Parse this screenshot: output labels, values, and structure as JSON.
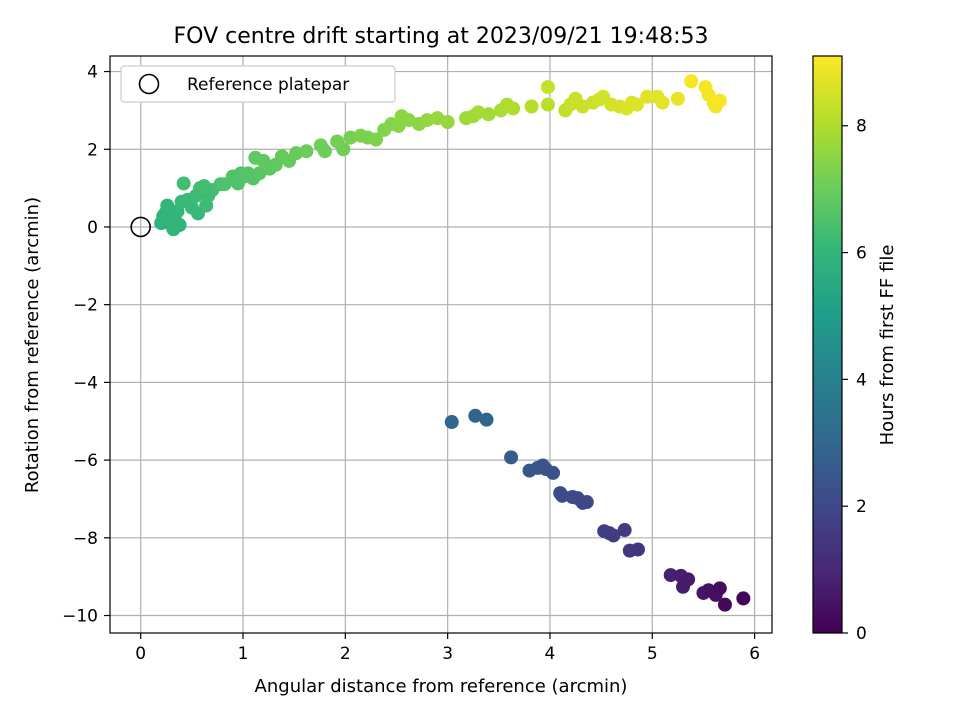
{
  "chart_data": {
    "type": "scatter",
    "title": "FOV centre drift starting at 2023/09/21 19:48:53",
    "xlabel": "Angular distance from reference (arcmin)",
    "ylabel": "Rotation from reference (arcmin)",
    "xlim": [
      -0.3,
      6.17
    ],
    "ylim": [
      -10.45,
      4.4
    ],
    "xticks": [
      0,
      1,
      2,
      3,
      4,
      5,
      6
    ],
    "xtick_labels": [
      "0",
      "1",
      "2",
      "3",
      "4",
      "5",
      "6"
    ],
    "yticks": [
      4,
      2,
      0,
      -2,
      -4,
      -6,
      -8,
      -10
    ],
    "ytick_labels": [
      "4",
      "2",
      "0",
      "−2",
      "−4",
      "−6",
      "−8",
      "−10"
    ],
    "grid": true,
    "legend": {
      "position": "upper-left",
      "entries": [
        "Reference platepar"
      ]
    },
    "reference_point": {
      "x": 0,
      "y": 0,
      "name": "Reference platepar"
    },
    "colorbar": {
      "label": "Hours from first FF file",
      "range": [
        0,
        9.1
      ],
      "ticks": [
        0,
        2,
        4,
        6,
        8
      ],
      "tick_labels": [
        "0",
        "2",
        "4",
        "6",
        "8"
      ],
      "colormap": "viridis",
      "stops": [
        "#440154",
        "#482878",
        "#3e4989",
        "#31688e",
        "#26828e",
        "#1f9e89",
        "#35b779",
        "#6ece58",
        "#b5de2b",
        "#fde725"
      ]
    },
    "points": [
      [
        3.04,
        -5.02,
        3.0
      ],
      [
        3.27,
        -4.86,
        2.95
      ],
      [
        3.38,
        -4.96,
        2.92
      ],
      [
        3.62,
        -5.93,
        2.6
      ],
      [
        3.8,
        -6.27,
        2.45
      ],
      [
        3.88,
        -6.2,
        2.4
      ],
      [
        3.93,
        -6.14,
        2.38
      ],
      [
        3.96,
        -6.23,
        2.35
      ],
      [
        4.03,
        -6.33,
        2.3
      ],
      [
        4.1,
        -6.85,
        2.15
      ],
      [
        4.12,
        -6.92,
        2.12
      ],
      [
        4.22,
        -6.95,
        2.05
      ],
      [
        4.27,
        -6.98,
        2.02
      ],
      [
        4.32,
        -7.1,
        1.98
      ],
      [
        4.36,
        -7.08,
        1.95
      ],
      [
        4.53,
        -7.83,
        1.7
      ],
      [
        4.58,
        -7.88,
        1.67
      ],
      [
        4.62,
        -7.94,
        1.65
      ],
      [
        4.73,
        -7.8,
        1.6
      ],
      [
        4.78,
        -8.33,
        1.45
      ],
      [
        4.86,
        -8.3,
        1.42
      ],
      [
        5.18,
        -8.96,
        0.8
      ],
      [
        5.28,
        -8.98,
        0.75
      ],
      [
        5.3,
        -9.26,
        0.7
      ],
      [
        5.35,
        -9.07,
        0.68
      ],
      [
        5.5,
        -9.42,
        0.5
      ],
      [
        5.55,
        -9.35,
        0.45
      ],
      [
        5.62,
        -9.47,
        0.4
      ],
      [
        5.66,
        -9.3,
        0.35
      ],
      [
        5.71,
        -9.72,
        0.2
      ],
      [
        5.89,
        -9.56,
        0.1
      ],
      [
        0.2,
        0.1,
        5.9
      ],
      [
        0.22,
        0.28,
        5.92
      ],
      [
        0.24,
        0.35,
        5.95
      ],
      [
        0.26,
        0.55,
        6.0
      ],
      [
        0.28,
        0.2,
        5.95
      ],
      [
        0.3,
        0.05,
        5.92
      ],
      [
        0.32,
        -0.06,
        5.9
      ],
      [
        0.34,
        0.15,
        5.95
      ],
      [
        0.36,
        0.4,
        6.0
      ],
      [
        0.38,
        0.05,
        5.93
      ],
      [
        0.4,
        0.65,
        6.1
      ],
      [
        0.42,
        1.12,
        6.3
      ],
      [
        0.46,
        0.7,
        6.15
      ],
      [
        0.5,
        0.5,
        6.1
      ],
      [
        0.54,
        0.8,
        6.2
      ],
      [
        0.56,
        0.35,
        6.1
      ],
      [
        0.58,
        1.0,
        6.3
      ],
      [
        0.62,
        1.05,
        6.35
      ],
      [
        0.64,
        0.55,
        6.2
      ],
      [
        0.66,
        0.8,
        6.25
      ],
      [
        0.7,
        0.95,
        6.35
      ],
      [
        0.78,
        1.1,
        6.45
      ],
      [
        0.82,
        1.1,
        6.5
      ],
      [
        0.9,
        1.3,
        6.55
      ],
      [
        0.92,
        1.2,
        6.55
      ],
      [
        0.95,
        1.12,
        6.55
      ],
      [
        0.98,
        1.38,
        6.6
      ],
      [
        1.02,
        1.3,
        6.6
      ],
      [
        1.05,
        1.38,
        6.65
      ],
      [
        1.1,
        1.25,
        6.65
      ],
      [
        1.12,
        1.78,
        6.8
      ],
      [
        1.16,
        1.38,
        6.7
      ],
      [
        1.2,
        1.7,
        6.8
      ],
      [
        1.26,
        1.5,
        6.75
      ],
      [
        1.32,
        1.6,
        6.8
      ],
      [
        1.38,
        1.82,
        6.9
      ],
      [
        1.45,
        1.7,
        6.9
      ],
      [
        1.52,
        1.9,
        6.95
      ],
      [
        1.62,
        1.95,
        7.0
      ],
      [
        1.76,
        2.1,
        7.1
      ],
      [
        1.8,
        1.95,
        7.05
      ],
      [
        1.92,
        2.2,
        7.15
      ],
      [
        1.98,
        2.0,
        7.1
      ],
      [
        2.05,
        2.3,
        7.2
      ],
      [
        2.15,
        2.35,
        7.25
      ],
      [
        2.22,
        2.3,
        7.25
      ],
      [
        2.3,
        2.25,
        7.3
      ],
      [
        2.38,
        2.5,
        7.35
      ],
      [
        2.45,
        2.65,
        7.4
      ],
      [
        2.52,
        2.6,
        7.45
      ],
      [
        2.55,
        2.85,
        7.5
      ],
      [
        2.62,
        2.75,
        7.5
      ],
      [
        2.72,
        2.65,
        7.55
      ],
      [
        2.8,
        2.75,
        7.6
      ],
      [
        2.9,
        2.8,
        7.65
      ],
      [
        3.0,
        2.7,
        7.65
      ],
      [
        3.18,
        2.8,
        7.75
      ],
      [
        3.25,
        2.85,
        7.8
      ],
      [
        3.3,
        2.95,
        7.85
      ],
      [
        3.4,
        2.9,
        7.85
      ],
      [
        3.52,
        3.0,
        7.95
      ],
      [
        3.58,
        3.15,
        8.0
      ],
      [
        3.64,
        3.05,
        8.0
      ],
      [
        3.82,
        3.1,
        8.1
      ],
      [
        3.98,
        3.15,
        8.15
      ],
      [
        3.98,
        3.6,
        8.3
      ],
      [
        4.15,
        3.0,
        8.25
      ],
      [
        4.2,
        3.15,
        8.3
      ],
      [
        4.25,
        3.3,
        8.35
      ],
      [
        4.32,
        3.1,
        8.35
      ],
      [
        4.42,
        3.2,
        8.4
      ],
      [
        4.48,
        3.28,
        8.45
      ],
      [
        4.52,
        3.35,
        8.5
      ],
      [
        4.6,
        3.15,
        8.5
      ],
      [
        4.68,
        3.1,
        8.55
      ],
      [
        4.75,
        3.05,
        8.6
      ],
      [
        4.8,
        3.2,
        8.6
      ],
      [
        4.85,
        3.15,
        8.65
      ],
      [
        4.95,
        3.35,
        8.7
      ],
      [
        5.05,
        3.35,
        8.75
      ],
      [
        5.1,
        3.2,
        8.75
      ],
      [
        5.25,
        3.3,
        8.8
      ],
      [
        5.38,
        3.75,
        9.0
      ],
      [
        5.52,
        3.6,
        9.0
      ],
      [
        5.55,
        3.4,
        8.95
      ],
      [
        5.6,
        3.2,
        8.95
      ],
      [
        5.62,
        3.1,
        8.95
      ],
      [
        5.66,
        3.25,
        9.0
      ]
    ]
  }
}
